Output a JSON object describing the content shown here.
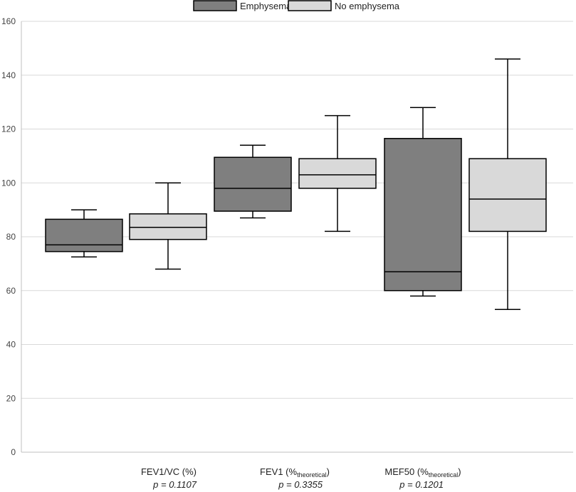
{
  "chart_data": {
    "type": "boxplot",
    "title": "",
    "xlabel": "",
    "ylabel": "",
    "ylim": [
      0,
      160
    ],
    "yticks": [
      0,
      20,
      40,
      60,
      80,
      100,
      120,
      140,
      160
    ],
    "ytick_labels": [
      "0",
      "20",
      "40",
      "60",
      "80",
      "100",
      "120",
      "140",
      "160"
    ],
    "grid": true,
    "legend_position": "top-center",
    "series": [
      {
        "name": "Emphysema",
        "color": "#7f7f7f"
      },
      {
        "name": "No emphysema",
        "color": "#d9d9d9"
      }
    ],
    "categories": [
      {
        "label_main": "FEV1/VC (%)",
        "label_sub": "",
        "label_suffix": "",
        "p_value": "p = 0.1107",
        "boxes": [
          {
            "series": "Emphysema",
            "min": 72.5,
            "q1": 74.5,
            "median": 77,
            "q3": 86.5,
            "max": 90
          },
          {
            "series": "No emphysema",
            "min": 68,
            "q1": 79,
            "median": 83.5,
            "q3": 88.5,
            "max": 100
          }
        ]
      },
      {
        "label_main": "FEV1 (%",
        "label_sub": "theoretical",
        "label_suffix": ")",
        "p_value": "p = 0.3355",
        "boxes": [
          {
            "series": "Emphysema",
            "min": 87,
            "q1": 89.5,
            "median": 98,
            "q3": 109.5,
            "max": 114
          },
          {
            "series": "No emphysema",
            "min": 82,
            "q1": 98,
            "median": 103,
            "q3": 109,
            "max": 125
          }
        ]
      },
      {
        "label_main": "MEF50 (%",
        "label_sub": "theoretical",
        "label_suffix": ")",
        "p_value": "p = 0.1201",
        "boxes": [
          {
            "series": "Emphysema",
            "min": 58,
            "q1": 60,
            "median": 67,
            "q3": 116.5,
            "max": 128
          },
          {
            "series": "No emphysema",
            "min": 53,
            "q1": 82,
            "median": 94,
            "q3": 109,
            "max": 146
          }
        ]
      }
    ]
  }
}
